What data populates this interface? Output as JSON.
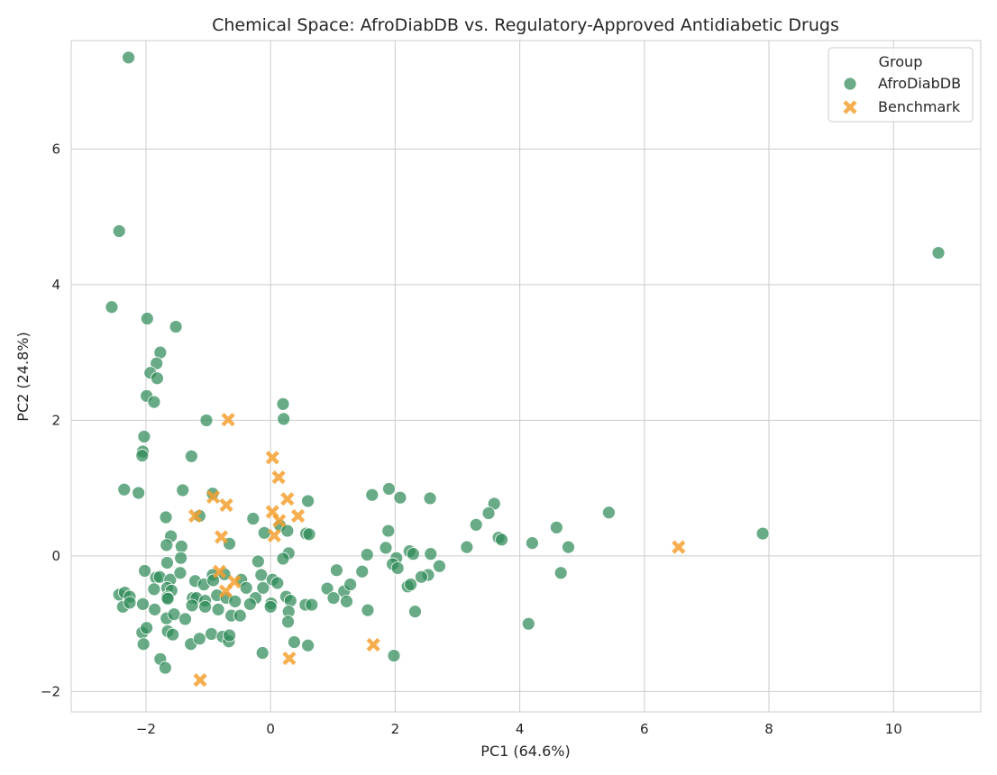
{
  "chart_data": {
    "type": "scatter",
    "title": "Chemical Space: AfroDiabDB vs. Regulatory-Approved Antidiabetic Drugs",
    "xlabel": "PC1 (64.6%)",
    "ylabel": "PC2 (24.8%)",
    "xlim": [
      -3.2,
      11.4
    ],
    "ylim": [
      -2.3,
      7.6
    ],
    "xticks": [
      -2,
      0,
      2,
      4,
      6,
      8,
      10
    ],
    "yticks": [
      -2,
      0,
      2,
      4,
      6
    ],
    "xtick_labels": [
      "−2",
      "0",
      "2",
      "4",
      "6",
      "8",
      "10"
    ],
    "ytick_labels": [
      "−2",
      "0",
      "2",
      "4",
      "6"
    ],
    "grid": true,
    "legend": {
      "title": "Group",
      "position": "top-right",
      "entries": [
        "AfroDiabDB",
        "Benchmark"
      ]
    },
    "series": [
      {
        "name": "AfroDiabDB",
        "marker": "circle",
        "color": "#2e8b57",
        "points": [
          [
            -2.28,
            7.35
          ],
          [
            -2.43,
            4.79
          ],
          [
            10.72,
            4.47
          ],
          [
            -2.55,
            3.67
          ],
          [
            -1.98,
            3.5
          ],
          [
            -1.52,
            3.38
          ],
          [
            -1.77,
            3.0
          ],
          [
            -1.83,
            2.84
          ],
          [
            -1.93,
            2.7
          ],
          [
            -1.82,
            2.62
          ],
          [
            -1.99,
            2.36
          ],
          [
            -1.87,
            2.27
          ],
          [
            0.2,
            2.24
          ],
          [
            0.21,
            2.02
          ],
          [
            -1.03,
            2.0
          ],
          [
            -2.03,
            1.76
          ],
          [
            -2.05,
            1.54
          ],
          [
            -2.06,
            1.48
          ],
          [
            -1.27,
            1.47
          ],
          [
            -2.35,
            0.98
          ],
          [
            -2.12,
            0.93
          ],
          [
            -1.41,
            0.97
          ],
          [
            -0.93,
            0.92
          ],
          [
            0.6,
            0.81
          ],
          [
            1.63,
            0.9
          ],
          [
            1.9,
            0.99
          ],
          [
            2.08,
            0.86
          ],
          [
            2.56,
            0.85
          ],
          [
            3.59,
            0.77
          ],
          [
            3.5,
            0.63
          ],
          [
            5.43,
            0.64
          ],
          [
            3.3,
            0.46
          ],
          [
            4.59,
            0.42
          ],
          [
            -1.68,
            0.57
          ],
          [
            -1.14,
            0.59
          ],
          [
            -0.28,
            0.55
          ],
          [
            -1.6,
            0.29
          ],
          [
            -0.1,
            0.34
          ],
          [
            0.15,
            0.45
          ],
          [
            0.27,
            0.37
          ],
          [
            0.57,
            0.33
          ],
          [
            0.62,
            0.32
          ],
          [
            1.89,
            0.37
          ],
          [
            3.66,
            0.27
          ],
          [
            3.71,
            0.24
          ],
          [
            4.2,
            0.19
          ],
          [
            4.78,
            0.13
          ],
          [
            3.15,
            0.13
          ],
          [
            -1.67,
            0.16
          ],
          [
            -1.43,
            0.14
          ],
          [
            -0.66,
            0.18
          ],
          [
            0.29,
            0.04
          ],
          [
            1.55,
            0.02
          ],
          [
            1.85,
            0.12
          ],
          [
            2.23,
            0.07
          ],
          [
            2.29,
            0.03
          ],
          [
            2.57,
            0.03
          ],
          [
            7.9,
            0.33
          ],
          [
            2.02,
            -0.03
          ],
          [
            1.96,
            -0.12
          ],
          [
            2.04,
            -0.18
          ],
          [
            -1.66,
            -0.1
          ],
          [
            -1.44,
            -0.03
          ],
          [
            -0.2,
            -0.08
          ],
          [
            0.2,
            -0.04
          ],
          [
            2.71,
            -0.15
          ],
          [
            4.66,
            -0.25
          ],
          [
            -2.02,
            -0.22
          ],
          [
            -1.84,
            -0.32
          ],
          [
            -1.78,
            -0.31
          ],
          [
            -1.61,
            -0.35
          ],
          [
            -1.45,
            -0.25
          ],
          [
            -0.93,
            -0.28
          ],
          [
            -0.74,
            -0.27
          ],
          [
            -0.15,
            -0.28
          ],
          [
            1.06,
            -0.21
          ],
          [
            1.47,
            -0.23
          ],
          [
            2.53,
            -0.28
          ],
          [
            2.42,
            -0.31
          ],
          [
            -2.43,
            -0.57
          ],
          [
            -2.34,
            -0.54
          ],
          [
            -2.26,
            -0.6
          ],
          [
            -2.37,
            -0.75
          ],
          [
            -2.26,
            -0.69
          ],
          [
            -1.87,
            -0.49
          ],
          [
            -1.66,
            -0.47
          ],
          [
            -1.59,
            -0.51
          ],
          [
            -1.21,
            -0.37
          ],
          [
            -1.07,
            -0.42
          ],
          [
            -0.92,
            -0.36
          ],
          [
            -0.47,
            -0.35
          ],
          [
            -0.39,
            -0.47
          ],
          [
            -0.12,
            -0.47
          ],
          [
            0.03,
            -0.35
          ],
          [
            0.11,
            -0.4
          ],
          [
            0.25,
            -0.6
          ],
          [
            0.32,
            -0.66
          ],
          [
            0.91,
            -0.48
          ],
          [
            1.18,
            -0.52
          ],
          [
            1.28,
            -0.42
          ],
          [
            2.2,
            -0.45
          ],
          [
            2.25,
            -0.42
          ],
          [
            -1.66,
            -0.61
          ],
          [
            -1.65,
            -0.63
          ],
          [
            -1.25,
            -0.62
          ],
          [
            -1.19,
            -0.62
          ],
          [
            -1.05,
            -0.66
          ],
          [
            -0.86,
            -0.58
          ],
          [
            -0.71,
            -0.62
          ],
          [
            -0.57,
            -0.67
          ],
          [
            -0.24,
            -0.62
          ],
          [
            0.01,
            -0.7
          ],
          [
            0.56,
            -0.72
          ],
          [
            0.66,
            -0.72
          ],
          [
            1.01,
            -0.62
          ],
          [
            1.22,
            -0.67
          ],
          [
            -2.05,
            -0.71
          ],
          [
            -1.86,
            -0.79
          ],
          [
            -1.67,
            -0.92
          ],
          [
            -1.55,
            -0.86
          ],
          [
            -1.37,
            -0.93
          ],
          [
            -1.26,
            -0.73
          ],
          [
            -1.05,
            -0.75
          ],
          [
            -0.84,
            -0.79
          ],
          [
            -0.63,
            -0.88
          ],
          [
            -0.49,
            -0.88
          ],
          [
            -0.33,
            -0.71
          ],
          [
            0.0,
            -0.75
          ],
          [
            0.29,
            -0.82
          ],
          [
            0.28,
            -0.97
          ],
          [
            1.56,
            -0.8
          ],
          [
            2.32,
            -0.82
          ],
          [
            -2.06,
            -1.13
          ],
          [
            -2.04,
            -1.3
          ],
          [
            -1.99,
            -1.06
          ],
          [
            -1.65,
            -1.11
          ],
          [
            -1.57,
            -1.16
          ],
          [
            -1.28,
            -1.3
          ],
          [
            -1.14,
            -1.22
          ],
          [
            -0.95,
            -1.15
          ],
          [
            -0.77,
            -1.19
          ],
          [
            -0.67,
            -1.26
          ],
          [
            -0.66,
            -1.17
          ],
          [
            -0.13,
            -1.43
          ],
          [
            0.38,
            -1.27
          ],
          [
            0.6,
            -1.32
          ],
          [
            1.98,
            -1.47
          ],
          [
            4.14,
            -1.0
          ],
          [
            -1.77,
            -1.52
          ],
          [
            -1.69,
            -1.65
          ]
        ]
      },
      {
        "name": "Benchmark",
        "marker": "x",
        "color": "#f5a030",
        "points": [
          [
            -0.68,
            2.01
          ],
          [
            0.03,
            1.45
          ],
          [
            0.13,
            1.16
          ],
          [
            -0.92,
            0.87
          ],
          [
            -0.71,
            0.75
          ],
          [
            0.27,
            0.84
          ],
          [
            -1.21,
            0.59
          ],
          [
            0.03,
            0.65
          ],
          [
            0.14,
            0.52
          ],
          [
            0.44,
            0.59
          ],
          [
            -0.79,
            0.28
          ],
          [
            0.06,
            0.3
          ],
          [
            6.55,
            0.13
          ],
          [
            -0.82,
            -0.23
          ],
          [
            -0.58,
            -0.38
          ],
          [
            -0.72,
            -0.52
          ],
          [
            1.65,
            -1.31
          ],
          [
            0.3,
            -1.51
          ],
          [
            -1.13,
            -1.83
          ]
        ]
      }
    ]
  }
}
